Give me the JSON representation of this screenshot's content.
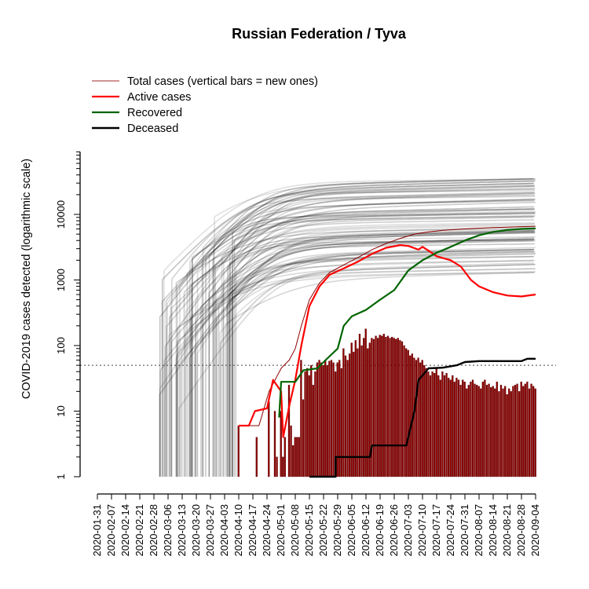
{
  "chart_data": {
    "type": "line",
    "title": "Russian Federation / Tyva",
    "ylabel": "COVID-2019 cases detected (logarithmic scale)",
    "y_scale": "log",
    "ylim": [
      1,
      60000
    ],
    "x_start": "2020-01-31",
    "x_end": "2020-09-04",
    "xtick_labels": [
      "2020-01-31",
      "2020-02-07",
      "2020-02-14",
      "2020-02-21",
      "2020-02-28",
      "2020-03-06",
      "2020-03-13",
      "2020-03-20",
      "2020-03-27",
      "2020-04-03",
      "2020-04-10",
      "2020-04-17",
      "2020-04-24",
      "2020-05-01",
      "2020-05-08",
      "2020-05-15",
      "2020-05-22",
      "2020-05-29",
      "2020-06-05",
      "2020-06-12",
      "2020-06-19",
      "2020-06-26",
      "2020-07-03",
      "2020-07-10",
      "2020-07-17",
      "2020-07-24",
      "2020-07-31",
      "2020-08-07",
      "2020-08-14",
      "2020-08-21",
      "2020-08-28",
      "2020-09-04"
    ],
    "ytick_labels": [
      "1",
      "10",
      "100",
      "1000",
      "10000"
    ],
    "ytick_values": [
      1,
      10,
      100,
      1000,
      10000
    ],
    "reference_line": 50,
    "legend": {
      "placement": "top-left",
      "entries": [
        {
          "label": "Total cases (vertical bars = new ones)",
          "color": "#a52a2a"
        },
        {
          "label": "Active cases",
          "color": "#ff0000"
        },
        {
          "label": "Recovered",
          "color": "#006400"
        },
        {
          "label": "Deceased",
          "color": "#000000"
        }
      ]
    },
    "series": [
      {
        "name": "Total cases (vertical bars = new ones)",
        "color": "#8b0000",
        "points": [
          [
            "2020-04-10",
            6
          ],
          [
            "2020-04-20",
            6
          ],
          [
            "2020-04-25",
            20
          ],
          [
            "2020-04-28",
            30
          ],
          [
            "2020-05-01",
            45
          ],
          [
            "2020-05-05",
            60
          ],
          [
            "2020-05-08",
            90
          ],
          [
            "2020-05-11",
            200
          ],
          [
            "2020-05-15",
            500
          ],
          [
            "2020-05-20",
            900
          ],
          [
            "2020-05-25",
            1300
          ],
          [
            "2020-06-01",
            1700
          ],
          [
            "2020-06-08",
            2200
          ],
          [
            "2020-06-15",
            2900
          ],
          [
            "2020-06-22",
            3600
          ],
          [
            "2020-06-29",
            4300
          ],
          [
            "2020-07-06",
            5000
          ],
          [
            "2020-07-13",
            5400
          ],
          [
            "2020-07-20",
            5700
          ],
          [
            "2020-07-31",
            6000
          ],
          [
            "2020-08-14",
            6300
          ],
          [
            "2020-08-28",
            6500
          ],
          [
            "2020-09-04",
            6600
          ]
        ]
      },
      {
        "name": "Active cases",
        "color": "#ff0000",
        "points": [
          [
            "2020-04-10",
            6
          ],
          [
            "2020-04-15",
            6
          ],
          [
            "2020-04-18",
            10
          ],
          [
            "2020-04-24",
            11
          ],
          [
            "2020-04-27",
            30
          ],
          [
            "2020-05-01",
            20
          ],
          [
            "2020-05-02",
            4
          ],
          [
            "2020-05-05",
            12
          ],
          [
            "2020-05-08",
            30
          ],
          [
            "2020-05-11",
            100
          ],
          [
            "2020-05-15",
            400
          ],
          [
            "2020-05-20",
            800
          ],
          [
            "2020-05-25",
            1200
          ],
          [
            "2020-06-01",
            1500
          ],
          [
            "2020-06-08",
            1900
          ],
          [
            "2020-06-15",
            2500
          ],
          [
            "2020-06-22",
            3100
          ],
          [
            "2020-06-29",
            3400
          ],
          [
            "2020-07-03",
            3300
          ],
          [
            "2020-07-08",
            2900
          ],
          [
            "2020-07-10",
            3200
          ],
          [
            "2020-07-13",
            2800
          ],
          [
            "2020-07-17",
            2300
          ],
          [
            "2020-07-24",
            2000
          ],
          [
            "2020-07-29",
            1600
          ],
          [
            "2020-08-03",
            1000
          ],
          [
            "2020-08-07",
            800
          ],
          [
            "2020-08-14",
            650
          ],
          [
            "2020-08-21",
            580
          ],
          [
            "2020-08-28",
            560
          ],
          [
            "2020-09-04",
            600
          ]
        ]
      },
      {
        "name": "Recovered",
        "color": "#006400",
        "points": [
          [
            "2020-04-30",
            8
          ],
          [
            "2020-05-01",
            28
          ],
          [
            "2020-05-08",
            28
          ],
          [
            "2020-05-12",
            42
          ],
          [
            "2020-05-19",
            45
          ],
          [
            "2020-05-23",
            60
          ],
          [
            "2020-05-29",
            90
          ],
          [
            "2020-06-01",
            200
          ],
          [
            "2020-06-05",
            280
          ],
          [
            "2020-06-12",
            350
          ],
          [
            "2020-06-19",
            500
          ],
          [
            "2020-06-26",
            700
          ],
          [
            "2020-07-03",
            1400
          ],
          [
            "2020-07-10",
            2000
          ],
          [
            "2020-07-17",
            2600
          ],
          [
            "2020-07-24",
            3200
          ],
          [
            "2020-07-31",
            4000
          ],
          [
            "2020-08-07",
            4800
          ],
          [
            "2020-08-14",
            5400
          ],
          [
            "2020-08-21",
            5800
          ],
          [
            "2020-08-28",
            6000
          ],
          [
            "2020-09-04",
            6100
          ]
        ]
      },
      {
        "name": "Deceased",
        "color": "#000000",
        "points": [
          [
            "2020-05-15",
            1
          ],
          [
            "2020-05-28",
            1
          ],
          [
            "2020-05-28",
            2
          ],
          [
            "2020-06-14",
            2
          ],
          [
            "2020-06-15",
            3
          ],
          [
            "2020-07-02",
            3
          ],
          [
            "2020-07-06",
            10
          ],
          [
            "2020-07-08",
            30
          ],
          [
            "2020-07-10",
            35
          ],
          [
            "2020-07-13",
            45
          ],
          [
            "2020-07-20",
            46
          ],
          [
            "2020-07-27",
            50
          ],
          [
            "2020-07-31",
            56
          ],
          [
            "2020-08-07",
            58
          ],
          [
            "2020-08-14",
            58
          ],
          [
            "2020-08-28",
            58
          ],
          [
            "2020-08-31",
            63
          ],
          [
            "2020-09-04",
            63
          ]
        ]
      }
    ],
    "new_cases_bars": {
      "color": "#8b0000",
      "points": [
        [
          "2020-04-10",
          6
        ],
        [
          "2020-04-19",
          4
        ],
        [
          "2020-04-22",
          1
        ],
        [
          "2020-04-25",
          14
        ],
        [
          "2020-04-28",
          10
        ],
        [
          "2020-04-29",
          2
        ],
        [
          "2020-05-01",
          10
        ],
        [
          "2020-05-02",
          2
        ],
        [
          "2020-05-03",
          4
        ],
        [
          "2020-05-05",
          25
        ],
        [
          "2020-05-06",
          6
        ],
        [
          "2020-05-07",
          3
        ],
        [
          "2020-05-08",
          4
        ],
        [
          "2020-05-09",
          4
        ],
        [
          "2020-05-10",
          4
        ],
        [
          "2020-05-11",
          60
        ],
        [
          "2020-05-12",
          15
        ],
        [
          "2020-05-13",
          40
        ],
        [
          "2020-05-14",
          45
        ],
        [
          "2020-05-15",
          35
        ],
        [
          "2020-05-16",
          50
        ],
        [
          "2020-05-17",
          25
        ],
        [
          "2020-05-18",
          40
        ],
        [
          "2020-05-19",
          55
        ],
        [
          "2020-05-20",
          60
        ],
        [
          "2020-05-21",
          55
        ],
        [
          "2020-05-22",
          50
        ],
        [
          "2020-05-23",
          60
        ],
        [
          "2020-05-24",
          50
        ],
        [
          "2020-05-25",
          58
        ],
        [
          "2020-05-26",
          60
        ],
        [
          "2020-05-27",
          55
        ],
        [
          "2020-05-28",
          40
        ],
        [
          "2020-05-29",
          55
        ],
        [
          "2020-05-30",
          60
        ],
        [
          "2020-05-31",
          45
        ],
        [
          "2020-06-01",
          90
        ],
        [
          "2020-06-02",
          70
        ],
        [
          "2020-06-03",
          60
        ],
        [
          "2020-06-04",
          75
        ],
        [
          "2020-06-05",
          110
        ],
        [
          "2020-06-06",
          80
        ],
        [
          "2020-06-07",
          120
        ],
        [
          "2020-06-08",
          90
        ],
        [
          "2020-06-09",
          150
        ],
        [
          "2020-06-10",
          100
        ],
        [
          "2020-06-11",
          130
        ],
        [
          "2020-06-12",
          180
        ],
        [
          "2020-06-13",
          90
        ],
        [
          "2020-06-14",
          110
        ],
        [
          "2020-06-15",
          130
        ],
        [
          "2020-06-16",
          125
        ],
        [
          "2020-06-17",
          140
        ],
        [
          "2020-06-18",
          130
        ],
        [
          "2020-06-19",
          145
        ],
        [
          "2020-06-20",
          140
        ],
        [
          "2020-06-21",
          150
        ],
        [
          "2020-06-22",
          135
        ],
        [
          "2020-06-23",
          140
        ],
        [
          "2020-06-24",
          130
        ],
        [
          "2020-06-25",
          135
        ],
        [
          "2020-06-26",
          130
        ],
        [
          "2020-06-27",
          125
        ],
        [
          "2020-06-28",
          130
        ],
        [
          "2020-06-29",
          120
        ],
        [
          "2020-06-30",
          115
        ],
        [
          "2020-07-01",
          100
        ],
        [
          "2020-07-02",
          90
        ],
        [
          "2020-07-03",
          85
        ],
        [
          "2020-07-04",
          70
        ],
        [
          "2020-07-05",
          75
        ],
        [
          "2020-07-06",
          65
        ],
        [
          "2020-07-07",
          60
        ],
        [
          "2020-07-08",
          65
        ],
        [
          "2020-07-09",
          55
        ],
        [
          "2020-07-10",
          60
        ],
        [
          "2020-07-11",
          50
        ],
        [
          "2020-07-12",
          45
        ],
        [
          "2020-07-13",
          40
        ],
        [
          "2020-07-14",
          35
        ],
        [
          "2020-07-15",
          40
        ],
        [
          "2020-07-16",
          38
        ],
        [
          "2020-07-17",
          45
        ],
        [
          "2020-07-18",
          35
        ],
        [
          "2020-07-19",
          30
        ],
        [
          "2020-07-20",
          40
        ],
        [
          "2020-07-21",
          35
        ],
        [
          "2020-07-22",
          38
        ],
        [
          "2020-07-23",
          32
        ],
        [
          "2020-07-24",
          30
        ],
        [
          "2020-07-25",
          35
        ],
        [
          "2020-07-26",
          28
        ],
        [
          "2020-07-27",
          32
        ],
        [
          "2020-07-28",
          30
        ],
        [
          "2020-07-29",
          25
        ],
        [
          "2020-07-30",
          30
        ],
        [
          "2020-07-31",
          28
        ],
        [
          "2020-08-01",
          22
        ],
        [
          "2020-08-02",
          25
        ],
        [
          "2020-08-03",
          28
        ],
        [
          "2020-08-04",
          30
        ],
        [
          "2020-08-05",
          26
        ],
        [
          "2020-08-06",
          25
        ],
        [
          "2020-08-07",
          24
        ],
        [
          "2020-08-08",
          22
        ],
        [
          "2020-08-09",
          28
        ],
        [
          "2020-08-10",
          30
        ],
        [
          "2020-08-11",
          25
        ],
        [
          "2020-08-12",
          26
        ],
        [
          "2020-08-13",
          23
        ],
        [
          "2020-08-14",
          24
        ],
        [
          "2020-08-15",
          22
        ],
        [
          "2020-08-16",
          28
        ],
        [
          "2020-08-17",
          20
        ],
        [
          "2020-08-18",
          25
        ],
        [
          "2020-08-19",
          22
        ],
        [
          "2020-08-20",
          24
        ],
        [
          "2020-08-21",
          18
        ],
        [
          "2020-08-22",
          22
        ],
        [
          "2020-08-23",
          20
        ],
        [
          "2020-08-24",
          24
        ],
        [
          "2020-08-25",
          25
        ],
        [
          "2020-08-26",
          26
        ],
        [
          "2020-08-27",
          20
        ],
        [
          "2020-08-28",
          28
        ],
        [
          "2020-08-29",
          24
        ],
        [
          "2020-08-30",
          26
        ],
        [
          "2020-08-31",
          28
        ],
        [
          "2020-09-01",
          22
        ],
        [
          "2020-09-02",
          26
        ],
        [
          "2020-09-03",
          24
        ],
        [
          "2020-09-04",
          22
        ]
      ]
    },
    "background_regions": {
      "color": "#000000",
      "count": 80
    }
  }
}
